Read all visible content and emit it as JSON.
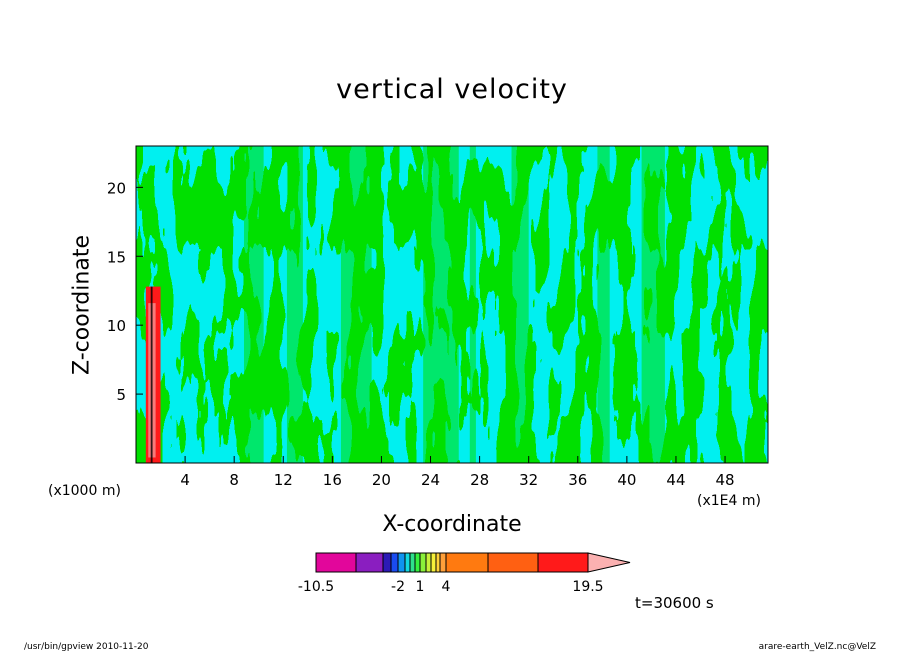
{
  "chart_data": {
    "type": "heatmap",
    "title": "vertical velocity",
    "xlabel": "X-coordinate",
    "ylabel": "Z-coordinate",
    "x_unit_label": "(x1E4 m)",
    "y_unit_label": "(x1000 m)",
    "xlim": [
      0,
      51.5
    ],
    "ylim": [
      0,
      23
    ],
    "x_ticks": [
      4,
      8,
      12,
      16,
      20,
      24,
      28,
      32,
      36,
      40,
      44,
      48
    ],
    "y_ticks": [
      5,
      10,
      15,
      20
    ],
    "colorbar": {
      "levels": [
        -10.5,
        -7.5,
        -4.5,
        -3,
        -2,
        -1.5,
        -1,
        -0.5,
        0,
        0.5,
        1,
        1.5,
        2,
        2.5,
        4,
        7,
        11,
        15.5,
        19.5
      ],
      "colors": [
        "#e2069b",
        "#8a1ec0",
        "#2c1ab6",
        "#1a4bf0",
        "#0f93f0",
        "#12d8e0",
        "#2ee08c",
        "#35f03f",
        "#8af03a",
        "#c8f03a",
        "#f5f03a",
        "#ffd23a",
        "#ffa03a",
        "#ff7a10",
        "#ff6012",
        "#ff1a1a",
        "#f87a7a",
        "#fbb1b1"
      ],
      "extend": "max",
      "tick_labels": [
        {
          "value": -10.5,
          "text": "-10.5"
        },
        {
          "value": -2,
          "text": "-2"
        },
        {
          "value": 1,
          "text": "1"
        },
        {
          "value": 4,
          "text": "4"
        },
        {
          "value": 19.5,
          "text": "19.5"
        }
      ]
    },
    "dominant_fields": {
      "negative_color": "#00f0f0",
      "positive_color": "#00e000"
    }
  },
  "time_label": "t=30600 s",
  "footer": {
    "left": "/usr/bin/gpview   2010-11-20",
    "right": "arare-earth_VelZ.nc@VelZ"
  }
}
